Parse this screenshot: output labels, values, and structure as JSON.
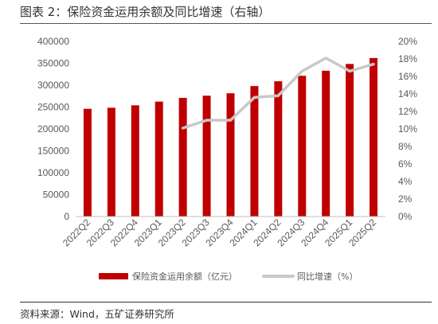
{
  "header": {
    "title": "图表 2：保险资金运用余额及同比增速（右轴）"
  },
  "footer": {
    "source": "资料来源：Wind，五矿证券研究所"
  },
  "chart_data": {
    "type": "bar",
    "categories": [
      "2022Q2",
      "2022Q3",
      "2022Q4",
      "2023Q1",
      "2023Q2",
      "2023Q3",
      "2023Q4",
      "2024Q1",
      "2024Q2",
      "2024Q3",
      "2024Q4",
      "2025Q1",
      "2025Q2"
    ],
    "y_ticks": [
      "0",
      "50000",
      "100000",
      "150000",
      "200000",
      "250000",
      "300000",
      "350000",
      "400000"
    ],
    "y2_ticks": [
      "0%",
      "2%",
      "4%",
      "6%",
      "8%",
      "10%",
      "12%",
      "14%",
      "16%",
      "18%",
      "20%"
    ],
    "ylim": [
      0,
      400000
    ],
    "y2lim": [
      0,
      20
    ],
    "grid": false,
    "legend_position": "bottom",
    "series": [
      {
        "name": "保险资金运用余额（亿元）",
        "type": "bar",
        "axis": "left",
        "color": "#C00000",
        "values": [
          246000,
          248500,
          254000,
          262500,
          271000,
          276000,
          281500,
          298000,
          309000,
          321500,
          333000,
          348500,
          362000
        ]
      },
      {
        "name": "同比增速（%）",
        "type": "line",
        "axis": "right",
        "color": "#C8C8C8",
        "values": [
          null,
          null,
          null,
          null,
          10.1,
          11.0,
          11.0,
          13.6,
          13.8,
          16.6,
          18.1,
          16.6,
          17.4
        ]
      }
    ]
  }
}
